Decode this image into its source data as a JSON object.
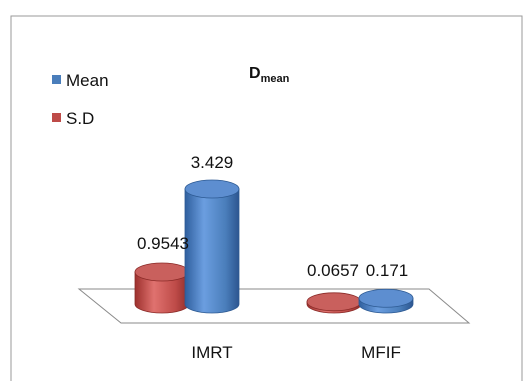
{
  "chart_data": {
    "type": "bar",
    "title_main": "D",
    "title_sub": "mean",
    "categories": [
      "IMRT",
      "MFIF"
    ],
    "series": [
      {
        "name": "S.D",
        "values": [
          0.9543,
          0.0657
        ],
        "labels": [
          "0.9543",
          "0.0657"
        ]
      },
      {
        "name": "Mean",
        "values": [
          3.429,
          0.171
        ],
        "labels": [
          "3.429",
          "0.171"
        ]
      }
    ],
    "legend": {
      "placement": "top-left",
      "items": [
        {
          "label": "Mean"
        },
        {
          "label": "S.D"
        }
      ]
    },
    "ylim": [
      0,
      3.429
    ],
    "grid": false,
    "style": "3d-cylinder",
    "colors": {
      "Mean": "#4a7ebb",
      "S.D": "#be4b48"
    }
  }
}
